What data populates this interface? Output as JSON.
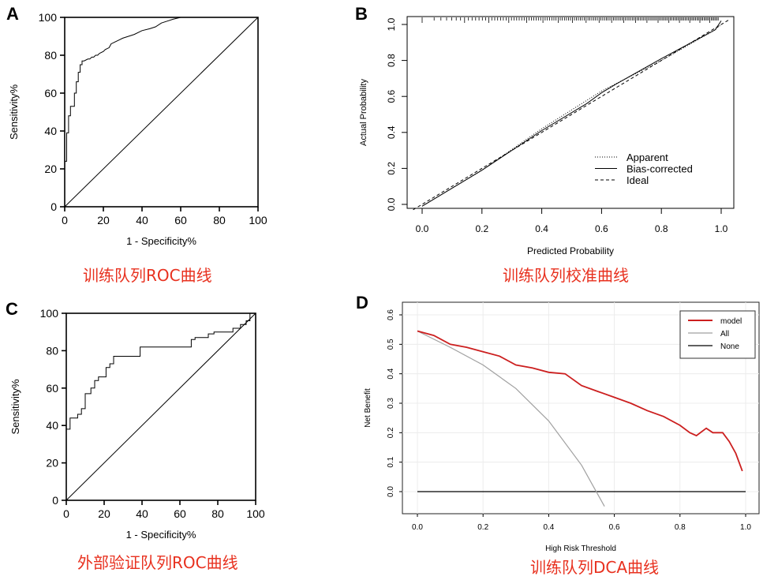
{
  "chart_data": [
    {
      "panel_label": "A",
      "type": "line",
      "title": "",
      "xlabel": "1 - Specificity%",
      "ylabel": "Sensitivity%",
      "xlim": [
        0,
        100
      ],
      "ylim": [
        0,
        100
      ],
      "xticks": [
        "0",
        "20",
        "40",
        "60",
        "80",
        "100"
      ],
      "yticks": [
        "0",
        "20",
        "40",
        "60",
        "80",
        "100"
      ],
      "caption": "训练队列ROC曲线",
      "series": [
        {
          "name": "ROC",
          "x": [
            0,
            0,
            1,
            1,
            2,
            2,
            3,
            3,
            4,
            5,
            5,
            6,
            6,
            7,
            7,
            8,
            8,
            9,
            9,
            10,
            12,
            13,
            14,
            15,
            16,
            17,
            18,
            20,
            21,
            23,
            24,
            26,
            28,
            30,
            33,
            36,
            40,
            44,
            47,
            50,
            53,
            56,
            60
          ],
          "y": [
            0,
            24,
            24,
            39,
            39,
            48,
            48,
            53,
            53,
            53,
            60,
            60,
            66,
            66,
            71,
            71,
            75,
            75,
            77,
            77,
            78,
            78,
            79,
            79,
            80,
            80,
            81,
            82,
            83,
            84,
            86,
            87,
            88,
            89,
            90,
            91,
            93,
            94,
            95,
            97,
            98,
            99,
            100
          ]
        },
        {
          "name": "Reference",
          "x": [
            0,
            100
          ],
          "y": [
            0,
            100
          ]
        }
      ]
    },
    {
      "panel_label": "B",
      "type": "line",
      "title": "",
      "xlabel": "Predicted Probability",
      "ylabel": "Actual Probability",
      "xlim": [
        -0.02,
        1.04
      ],
      "ylim": [
        -0.02,
        1.04
      ],
      "xticks": [
        "0.0",
        "0.2",
        "0.4",
        "0.6",
        "0.8",
        "1.0"
      ],
      "yticks": [
        "0.0",
        "0.2",
        "0.4",
        "0.6",
        "0.8",
        "1.0"
      ],
      "caption": "训练队列校准曲线",
      "legend": [
        "Apparent",
        "Bias-corrected",
        "Ideal"
      ],
      "series": [
        {
          "name": "Apparent",
          "x": [
            0,
            0.2,
            0.4,
            0.6,
            0.8,
            0.98,
            1.0
          ],
          "y": [
            -0.01,
            0.19,
            0.42,
            0.63,
            0.8,
            0.97,
            1.0
          ]
        },
        {
          "name": "Bias-corrected",
          "x": [
            0,
            0.2,
            0.4,
            0.55,
            0.6,
            0.65,
            0.8,
            0.98,
            1.0
          ],
          "y": [
            -0.01,
            0.19,
            0.41,
            0.56,
            0.62,
            0.67,
            0.81,
            0.97,
            1.02
          ]
        },
        {
          "name": "Ideal",
          "x": [
            -0.03,
            1.03
          ],
          "y": [
            -0.03,
            1.03
          ]
        }
      ]
    },
    {
      "panel_label": "C",
      "type": "line",
      "title": "",
      "xlabel": "1 - Specificity%",
      "ylabel": "Sensitivity%",
      "xlim": [
        0,
        100
      ],
      "ylim": [
        0,
        100
      ],
      "xticks": [
        "0",
        "20",
        "40",
        "60",
        "80",
        "100"
      ],
      "yticks": [
        "0",
        "20",
        "40",
        "60",
        "80",
        "100"
      ],
      "caption": "外部验证队列ROC曲线",
      "series": [
        {
          "name": "ROC",
          "x": [
            0,
            0,
            2,
            2,
            6,
            6,
            8,
            8,
            10,
            10,
            13,
            13,
            15,
            15,
            17,
            17,
            21,
            21,
            23,
            23,
            25,
            25,
            39,
            39,
            66,
            66,
            68,
            68,
            75,
            75,
            78,
            78,
            88,
            88,
            92,
            92,
            95,
            95,
            97,
            97,
            100
          ],
          "y": [
            0,
            38,
            38,
            44,
            44,
            46,
            46,
            49,
            49,
            57,
            57,
            60,
            60,
            64,
            64,
            66,
            66,
            71,
            71,
            73,
            73,
            77,
            77,
            82,
            82,
            86,
            86,
            87,
            87,
            89,
            89,
            90,
            90,
            92,
            92,
            94,
            94,
            96,
            96,
            100,
            100
          ]
        },
        {
          "name": "Reference",
          "x": [
            0,
            100
          ],
          "y": [
            0,
            100
          ]
        }
      ]
    },
    {
      "panel_label": "D",
      "type": "line",
      "title": "",
      "xlabel": "High Risk Threshold",
      "ylabel": "Net Benefit",
      "xlim": [
        -0.06,
        1.04
      ],
      "ylim": [
        -0.06,
        0.62
      ],
      "xticks": [
        "0.0",
        "0.2",
        "0.4",
        "0.6",
        "0.8",
        "1.0"
      ],
      "yticks": [
        "0.0",
        "0.1",
        "0.2",
        "0.3",
        "0.4",
        "0.5",
        "0.6"
      ],
      "caption": "训练队列DCA曲线",
      "legend": [
        "model",
        "All",
        "None"
      ],
      "legend_colors": [
        "#cc1f1f",
        "#a0a0a0",
        "#000000"
      ],
      "series": [
        {
          "name": "model",
          "x": [
            0,
            0.05,
            0.1,
            0.15,
            0.2,
            0.25,
            0.3,
            0.35,
            0.4,
            0.45,
            0.5,
            0.55,
            0.6,
            0.65,
            0.7,
            0.75,
            0.8,
            0.83,
            0.85,
            0.88,
            0.9,
            0.93,
            0.95,
            0.97,
            0.99
          ],
          "y": [
            0.545,
            0.53,
            0.5,
            0.49,
            0.475,
            0.46,
            0.43,
            0.42,
            0.405,
            0.4,
            0.36,
            0.34,
            0.32,
            0.3,
            0.275,
            0.255,
            0.225,
            0.2,
            0.19,
            0.215,
            0.2,
            0.2,
            0.17,
            0.13,
            0.07
          ]
        },
        {
          "name": "All",
          "x": [
            0,
            0.1,
            0.2,
            0.3,
            0.4,
            0.5,
            0.54,
            0.57
          ],
          "y": [
            0.545,
            0.49,
            0.43,
            0.35,
            0.24,
            0.09,
            0.01,
            -0.05
          ]
        },
        {
          "name": "None",
          "x": [
            0,
            1
          ],
          "y": [
            0,
            0
          ]
        }
      ]
    }
  ]
}
